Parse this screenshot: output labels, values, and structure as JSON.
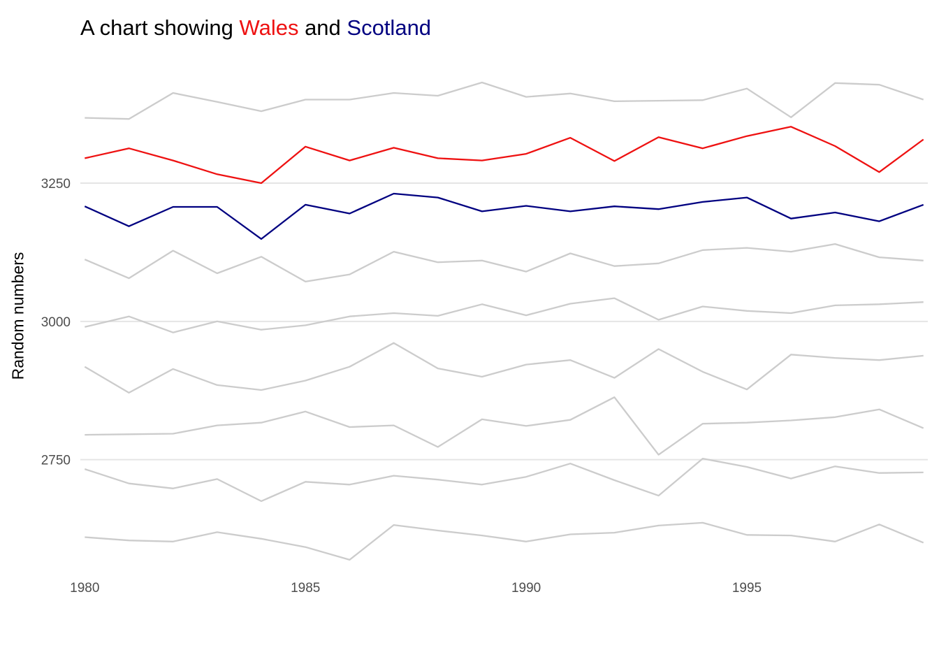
{
  "chart_data": {
    "type": "line",
    "title": {
      "before": "A chart showing ",
      "highlight1": "Wales",
      "middle": " and ",
      "highlight2": "Scotland"
    },
    "xlabel": "",
    "ylabel": "Random numbers",
    "x": [
      1980,
      1981,
      1982,
      1983,
      1984,
      1985,
      1986,
      1987,
      1988,
      1989,
      1990,
      1991,
      1992,
      1993,
      1994,
      1995,
      1996,
      1997,
      1998,
      1999
    ],
    "xticks": [
      1980,
      1985,
      1990,
      1995
    ],
    "yticks": [
      2750,
      3000,
      3250
    ],
    "xlim": [
      1979.9,
      1999.1
    ],
    "ylim": [
      2555,
      3480
    ],
    "grid": {
      "horizontal_major": true,
      "vertical": false
    },
    "colors": {
      "highlight1": "#ee1111",
      "highlight2": "#000080",
      "other": "#cccccc",
      "grid": "#e5e5e5"
    },
    "series": [
      {
        "values": [
          3368,
          3366,
          3413,
          3397,
          3380,
          3401,
          3401,
          3413,
          3408,
          3432,
          3406,
          3412,
          3398,
          3399,
          3400,
          3421,
          3369,
          3431,
          3428,
          3401
        ]
      },
      {
        "name": "Wales",
        "highlight": "highlight1",
        "values": [
          3295,
          3313,
          3291,
          3266,
          3250,
          3316,
          3291,
          3314,
          3295,
          3291,
          3303,
          3332,
          3290,
          3333,
          3313,
          3335,
          3352,
          3317,
          3270,
          3329
        ]
      },
      {
        "name": "Scotland",
        "highlight": "highlight2",
        "values": [
          3208,
          3172,
          3207,
          3207,
          3149,
          3211,
          3195,
          3231,
          3224,
          3199,
          3209,
          3199,
          3208,
          3203,
          3216,
          3224,
          3186,
          3197,
          3181,
          3211
        ]
      },
      {
        "values": [
          3112,
          3078,
          3128,
          3087,
          3117,
          3072,
          3085,
          3126,
          3107,
          3110,
          3090,
          3123,
          3100,
          3105,
          3129,
          3133,
          3126,
          3140,
          3116,
          3110
        ]
      },
      {
        "values": [
          2990,
          3009,
          2980,
          3000,
          2985,
          2993,
          3009,
          3015,
          3010,
          3031,
          3011,
          3032,
          3042,
          3003,
          3027,
          3019,
          3015,
          3029,
          3031,
          3035
        ]
      },
      {
        "values": [
          2918,
          2871,
          2914,
          2885,
          2876,
          2893,
          2918,
          2961,
          2915,
          2900,
          2922,
          2930,
          2898,
          2950,
          2909,
          2877,
          2940,
          2934,
          2930,
          2938
        ]
      },
      {
        "values": [
          2795,
          2796,
          2797,
          2812,
          2817,
          2837,
          2809,
          2812,
          2773,
          2823,
          2811,
          2822,
          2863,
          2759,
          2815,
          2817,
          2821,
          2827,
          2841,
          2807
        ]
      },
      {
        "values": [
          2733,
          2707,
          2698,
          2715,
          2675,
          2710,
          2705,
          2721,
          2714,
          2705,
          2719,
          2743,
          2713,
          2685,
          2752,
          2737,
          2716,
          2738,
          2726,
          2727
        ]
      },
      {
        "values": [
          2610,
          2604,
          2602,
          2619,
          2607,
          2592,
          2569,
          2632,
          2622,
          2613,
          2602,
          2615,
          2618,
          2631,
          2636,
          2614,
          2613,
          2602,
          2633,
          2600
        ]
      }
    ]
  }
}
